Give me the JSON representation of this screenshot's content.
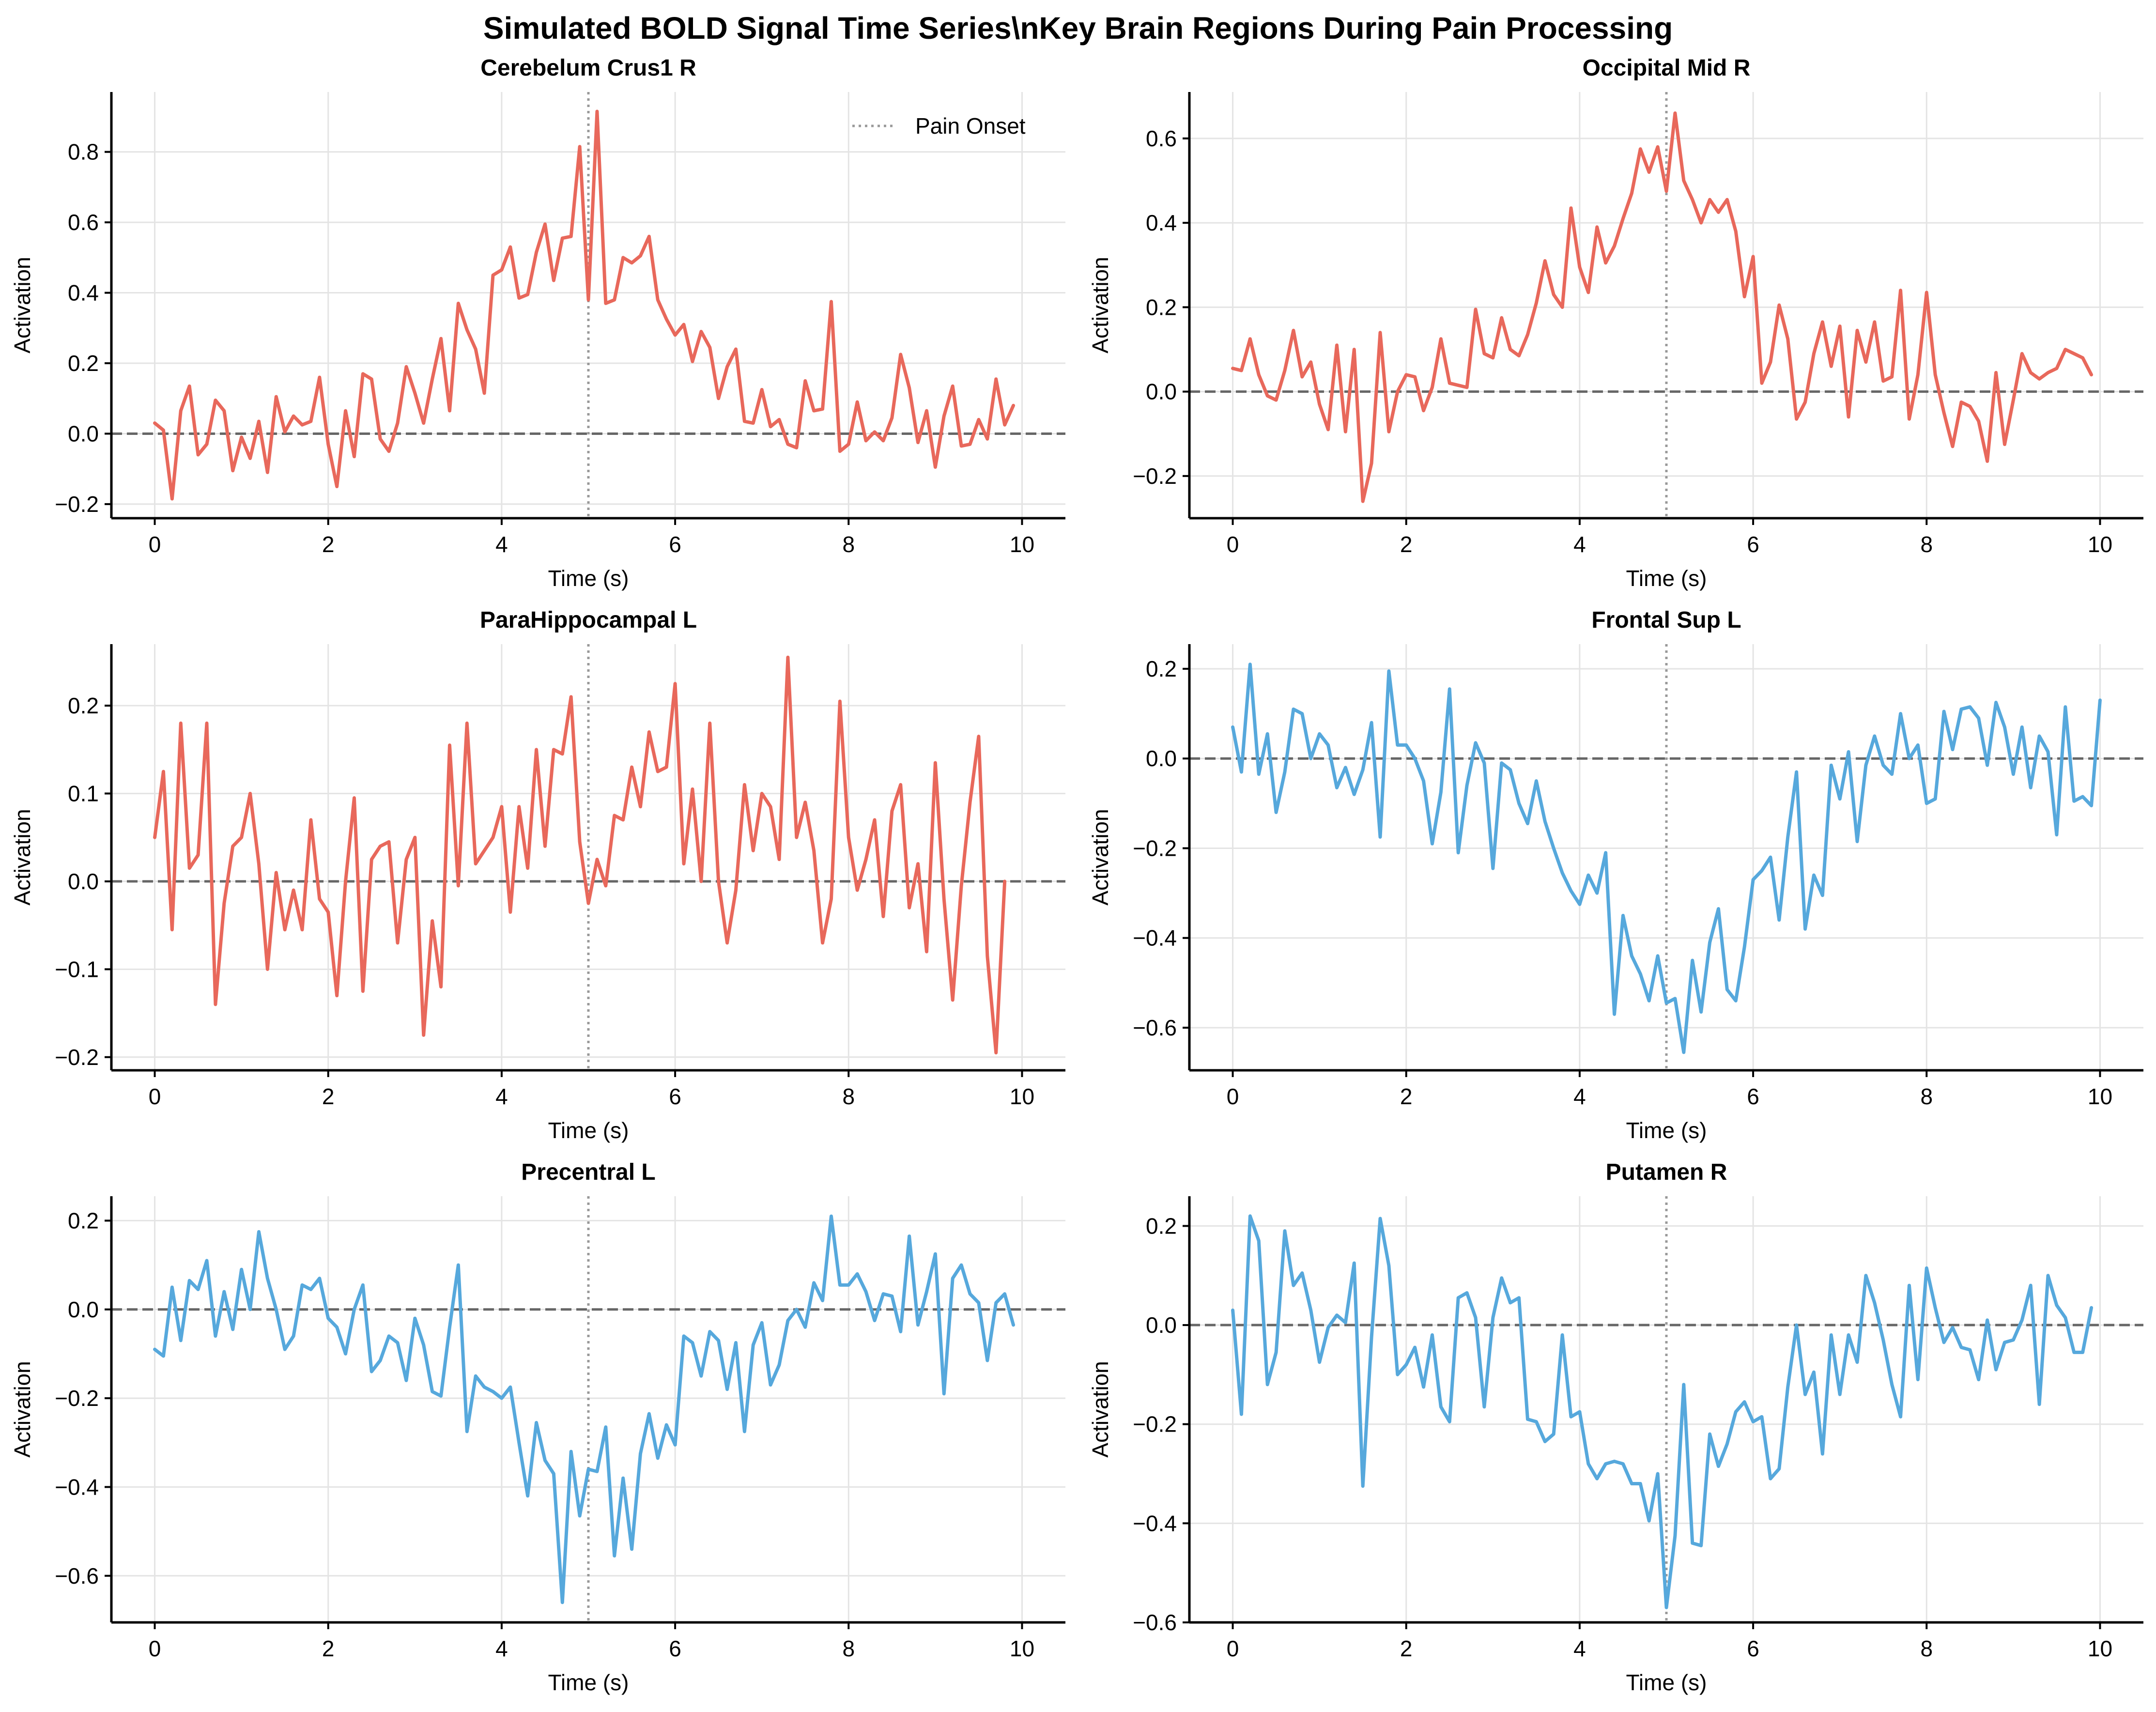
{
  "figure": {
    "title": "Simulated BOLD Signal Time Series\\nKey Brain Regions During Pain Processing"
  },
  "colors": {
    "positive_series": "#e8685b",
    "negative_series": "#56a8dc",
    "baseline": "#666666",
    "onset": "#999999",
    "grid": "#e4e4e4"
  },
  "chart_data": [
    {
      "type": "line",
      "title": "Cerebelum Crus1 R",
      "xlabel": "Time (s)",
      "ylabel": "Activation",
      "xlim": [
        -0.5,
        10.5
      ],
      "ylim": [
        -0.24,
        0.97
      ],
      "xticks": [
        0,
        2,
        4,
        6,
        8,
        10
      ],
      "yticks": [
        -0.2,
        0.0,
        0.2,
        0.4,
        0.6,
        0.8
      ],
      "color": "#e8685b",
      "onset": 5,
      "legend": {
        "label": "Pain Onset",
        "position": "top-right"
      },
      "series": [
        {
          "x_start": 0,
          "x_step": 0.1,
          "values": [
            0.03,
            0.01,
            -0.185,
            0.065,
            0.135,
            -0.06,
            -0.03,
            0.095,
            0.065,
            -0.105,
            -0.01,
            -0.07,
            0.035,
            -0.11,
            0.105,
            0.005,
            0.05,
            0.025,
            0.035,
            0.16,
            -0.03,
            -0.15,
            0.065,
            -0.065,
            0.17,
            0.155,
            -0.015,
            -0.05,
            0.03,
            0.19,
            0.115,
            0.03,
            0.155,
            0.27,
            0.065,
            0.37,
            0.295,
            0.24,
            0.115,
            0.45,
            0.465,
            0.53,
            0.385,
            0.395,
            0.515,
            0.595,
            0.435,
            0.555,
            0.56,
            0.815,
            0.38,
            0.915,
            0.37,
            0.38,
            0.5,
            0.485,
            0.505,
            0.56,
            0.38,
            0.325,
            0.28,
            0.31,
            0.205,
            0.29,
            0.245,
            0.1,
            0.19,
            0.24,
            0.035,
            0.03,
            0.125,
            0.02,
            0.04,
            -0.03,
            -0.04,
            0.15,
            0.065,
            0.07,
            0.375,
            -0.05,
            -0.03,
            0.09,
            -0.02,
            0.005,
            -0.02,
            0.045,
            0.225,
            0.13,
            -0.025,
            0.065,
            -0.095,
            0.05,
            0.135,
            -0.035,
            -0.03,
            0.04,
            -0.015,
            0.155,
            0.025,
            0.08
          ]
        }
      ]
    },
    {
      "type": "line",
      "title": "Occipital Mid R",
      "xlabel": "Time (s)",
      "ylabel": "Activation",
      "xlim": [
        -0.5,
        10.5
      ],
      "ylim": [
        -0.3,
        0.71
      ],
      "xticks": [
        0,
        2,
        4,
        6,
        8,
        10
      ],
      "yticks": [
        -0.2,
        0.0,
        0.2,
        0.4,
        0.6
      ],
      "color": "#e8685b",
      "onset": 5,
      "series": [
        {
          "x_start": 0,
          "x_step": 0.1,
          "values": [
            0.055,
            0.05,
            0.125,
            0.04,
            -0.01,
            -0.02,
            0.05,
            0.145,
            0.035,
            0.07,
            -0.03,
            -0.09,
            0.11,
            -0.095,
            0.1,
            -0.26,
            -0.17,
            0.14,
            -0.095,
            0.0,
            0.04,
            0.035,
            -0.045,
            0.01,
            0.125,
            0.02,
            0.015,
            0.01,
            0.195,
            0.09,
            0.08,
            0.175,
            0.1,
            0.085,
            0.135,
            0.21,
            0.31,
            0.23,
            0.2,
            0.435,
            0.295,
            0.235,
            0.39,
            0.305,
            0.345,
            0.41,
            0.47,
            0.575,
            0.52,
            0.58,
            0.475,
            0.66,
            0.5,
            0.455,
            0.4,
            0.455,
            0.425,
            0.455,
            0.38,
            0.225,
            0.32,
            0.02,
            0.07,
            0.205,
            0.125,
            -0.065,
            -0.025,
            0.09,
            0.165,
            0.06,
            0.155,
            -0.06,
            0.145,
            0.07,
            0.165,
            0.025,
            0.035,
            0.24,
            -0.065,
            0.04,
            0.235,
            0.04,
            -0.05,
            -0.13,
            -0.025,
            -0.035,
            -0.07,
            -0.165,
            0.045,
            -0.125,
            -0.02,
            0.09,
            0.045,
            0.03,
            0.045,
            0.055,
            0.1,
            0.09,
            0.08,
            0.04
          ]
        }
      ]
    },
    {
      "type": "line",
      "title": "ParaHippocampal L",
      "xlabel": "Time (s)",
      "ylabel": "Activation",
      "xlim": [
        -0.5,
        10.5
      ],
      "ylim": [
        -0.215,
        0.27
      ],
      "xticks": [
        0,
        2,
        4,
        6,
        8,
        10
      ],
      "yticks": [
        -0.2,
        -0.1,
        0.0,
        0.1,
        0.2
      ],
      "color": "#e8685b",
      "onset": 5,
      "series": [
        {
          "x_start": 0,
          "x_step": 0.1,
          "values": [
            0.05,
            0.125,
            -0.055,
            0.18,
            0.015,
            0.03,
            0.18,
            -0.14,
            -0.025,
            0.04,
            0.05,
            0.1,
            0.02,
            -0.1,
            0.01,
            -0.055,
            -0.01,
            -0.055,
            0.07,
            -0.02,
            -0.035,
            -0.13,
            0.0,
            0.095,
            -0.125,
            0.025,
            0.04,
            0.045,
            -0.07,
            0.025,
            0.05,
            -0.175,
            -0.045,
            -0.12,
            0.155,
            -0.005,
            0.18,
            0.02,
            0.035,
            0.05,
            0.085,
            -0.035,
            0.085,
            0.015,
            0.15,
            0.04,
            0.15,
            0.145,
            0.21,
            0.045,
            -0.025,
            0.025,
            -0.005,
            0.075,
            0.07,
            0.13,
            0.085,
            0.17,
            0.125,
            0.13,
            0.225,
            0.02,
            0.105,
            0.0,
            0.18,
            0.0,
            -0.07,
            -0.01,
            0.11,
            0.035,
            0.1,
            0.085,
            0.025,
            0.255,
            0.05,
            0.09,
            0.035,
            -0.07,
            -0.02,
            0.205,
            0.05,
            -0.01,
            0.025,
            0.07,
            -0.04,
            0.08,
            0.11,
            -0.03,
            0.02,
            -0.08,
            0.135,
            -0.02,
            -0.135,
            -0.005,
            0.09,
            0.165,
            -0.085,
            -0.195,
            0.0
          ]
        }
      ]
    },
    {
      "type": "line",
      "title": "Frontal Sup L",
      "xlabel": "Time (s)",
      "ylabel": "Activation",
      "xlim": [
        -0.5,
        10.5
      ],
      "ylim": [
        -0.695,
        0.255
      ],
      "xticks": [
        0,
        2,
        4,
        6,
        8,
        10
      ],
      "yticks": [
        -0.6,
        -0.4,
        -0.2,
        0.0,
        0.2
      ],
      "color": "#56a8dc",
      "onset": 5,
      "series": [
        {
          "x_start": 0,
          "x_step": 0.1,
          "values": [
            0.07,
            -0.03,
            0.21,
            -0.035,
            0.055,
            -0.12,
            -0.03,
            0.11,
            0.1,
            0.0,
            0.055,
            0.03,
            -0.065,
            -0.02,
            -0.08,
            -0.025,
            0.08,
            -0.175,
            0.195,
            0.03,
            0.03,
            0.0,
            -0.05,
            -0.19,
            -0.075,
            0.155,
            -0.21,
            -0.06,
            0.035,
            -0.01,
            -0.245,
            -0.01,
            -0.025,
            -0.1,
            -0.145,
            -0.05,
            -0.14,
            -0.2,
            -0.255,
            -0.295,
            -0.325,
            -0.26,
            -0.3,
            -0.21,
            -0.57,
            -0.35,
            -0.44,
            -0.48,
            -0.54,
            -0.44,
            -0.545,
            -0.535,
            -0.655,
            -0.45,
            -0.565,
            -0.41,
            -0.335,
            -0.515,
            -0.54,
            -0.42,
            -0.27,
            -0.25,
            -0.22,
            -0.36,
            -0.175,
            -0.03,
            -0.38,
            -0.26,
            -0.305,
            -0.015,
            -0.09,
            0.015,
            -0.185,
            -0.015,
            0.05,
            -0.015,
            -0.035,
            0.1,
            0.0,
            0.03,
            -0.1,
            -0.09,
            0.105,
            0.02,
            0.11,
            0.115,
            0.09,
            -0.015,
            0.125,
            0.07,
            -0.035,
            0.07,
            -0.065,
            0.05,
            0.015,
            -0.17,
            0.115,
            -0.095,
            -0.085,
            -0.105,
            0.13
          ]
        }
      ]
    },
    {
      "type": "line",
      "title": "Precentral L",
      "xlabel": "Time (s)",
      "ylabel": "Activation",
      "xlim": [
        -0.5,
        10.5
      ],
      "ylim": [
        -0.705,
        0.255
      ],
      "xticks": [
        0,
        2,
        4,
        6,
        8,
        10
      ],
      "yticks": [
        -0.6,
        -0.4,
        -0.2,
        0.0,
        0.2
      ],
      "color": "#56a8dc",
      "onset": 5,
      "series": [
        {
          "x_start": 0,
          "x_step": 0.1,
          "values": [
            -0.09,
            -0.105,
            0.05,
            -0.07,
            0.065,
            0.045,
            0.11,
            -0.06,
            0.04,
            -0.045,
            0.09,
            0.0,
            0.175,
            0.07,
            0.0,
            -0.09,
            -0.06,
            0.055,
            0.045,
            0.07,
            -0.02,
            -0.04,
            -0.1,
            0.0,
            0.055,
            -0.14,
            -0.115,
            -0.06,
            -0.075,
            -0.16,
            -0.02,
            -0.08,
            -0.185,
            -0.195,
            -0.04,
            0.1,
            -0.275,
            -0.15,
            -0.175,
            -0.185,
            -0.2,
            -0.175,
            -0.3,
            -0.42,
            -0.255,
            -0.34,
            -0.37,
            -0.66,
            -0.32,
            -0.465,
            -0.36,
            -0.365,
            -0.265,
            -0.555,
            -0.38,
            -0.54,
            -0.325,
            -0.235,
            -0.335,
            -0.26,
            -0.305,
            -0.06,
            -0.075,
            -0.15,
            -0.05,
            -0.07,
            -0.18,
            -0.075,
            -0.275,
            -0.08,
            -0.03,
            -0.17,
            -0.125,
            -0.025,
            0.0,
            -0.04,
            0.06,
            0.02,
            0.21,
            0.055,
            0.055,
            0.08,
            0.04,
            -0.025,
            0.035,
            0.03,
            -0.05,
            0.165,
            -0.035,
            0.04,
            0.125,
            -0.19,
            0.07,
            0.1,
            0.035,
            0.015,
            -0.115,
            0.015,
            0.035,
            -0.035
          ]
        }
      ]
    },
    {
      "type": "line",
      "title": "Putamen R",
      "xlabel": "Time (s)",
      "ylabel": "Activation",
      "xlim": [
        -0.5,
        10.5
      ],
      "ylim": [
        -0.6,
        0.26
      ],
      "xticks": [
        0,
        2,
        4,
        6,
        8,
        10
      ],
      "yticks": [
        -0.6,
        -0.4,
        -0.2,
        0.0,
        0.2
      ],
      "color": "#56a8dc",
      "onset": 5,
      "series": [
        {
          "x_start": 0,
          "x_step": 0.1,
          "values": [
            0.03,
            -0.18,
            0.22,
            0.17,
            -0.12,
            -0.055,
            0.19,
            0.08,
            0.105,
            0.03,
            -0.075,
            -0.005,
            0.02,
            0.005,
            0.125,
            -0.325,
            -0.025,
            0.215,
            0.12,
            -0.1,
            -0.08,
            -0.045,
            -0.125,
            -0.02,
            -0.165,
            -0.195,
            0.055,
            0.065,
            0.015,
            -0.165,
            0.015,
            0.095,
            0.045,
            0.055,
            -0.19,
            -0.195,
            -0.235,
            -0.22,
            -0.02,
            -0.185,
            -0.175,
            -0.28,
            -0.31,
            -0.28,
            -0.275,
            -0.28,
            -0.32,
            -0.32,
            -0.395,
            -0.3,
            -0.57,
            -0.425,
            -0.12,
            -0.44,
            -0.445,
            -0.22,
            -0.285,
            -0.24,
            -0.175,
            -0.155,
            -0.195,
            -0.185,
            -0.31,
            -0.29,
            -0.125,
            0.0,
            -0.14,
            -0.095,
            -0.26,
            -0.02,
            -0.14,
            -0.02,
            -0.075,
            0.1,
            0.045,
            -0.03,
            -0.12,
            -0.185,
            0.08,
            -0.11,
            0.115,
            0.035,
            -0.035,
            -0.005,
            -0.045,
            -0.05,
            -0.11,
            0.01,
            -0.09,
            -0.035,
            -0.03,
            0.01,
            0.08,
            -0.16,
            0.1,
            0.04,
            0.015,
            -0.055,
            -0.055,
            0.035
          ]
        }
      ]
    }
  ]
}
